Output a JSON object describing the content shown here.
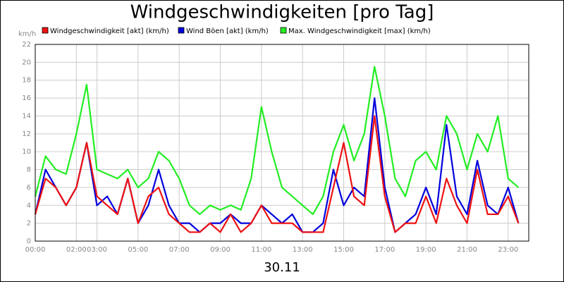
{
  "chart_data": {
    "type": "line",
    "title": "Windgeschwindigkeiten [pro Tag]",
    "y_unit": "km/h",
    "x_caption": "30.11",
    "x": [
      0,
      0.5,
      1,
      1.5,
      2,
      2.5,
      3,
      3.5,
      4,
      4.5,
      5,
      5.5,
      6,
      6.5,
      7,
      7.5,
      8,
      8.5,
      9,
      9.5,
      10,
      10.5,
      11,
      11.5,
      12,
      12.5,
      13,
      13.5,
      14,
      14.5,
      15,
      15.5,
      16,
      16.5,
      17,
      17.5,
      18,
      18.5,
      19,
      19.5,
      20,
      20.5,
      21,
      21.5,
      22,
      22.5,
      23,
      23.5
    ],
    "series": [
      {
        "name": "Windgeschwindigkeit [akt] (km/h)",
        "color": "#ee1111",
        "values": [
          3,
          7,
          6,
          4,
          6,
          11,
          5,
          4,
          3,
          7,
          2,
          5,
          6,
          3,
          2,
          1,
          1,
          2,
          1,
          3,
          1,
          2,
          4,
          2,
          2,
          2,
          1,
          1,
          1,
          6,
          11,
          5,
          4,
          14,
          5,
          1,
          2,
          2,
          5,
          2,
          7,
          4,
          2,
          8,
          3,
          3,
          5,
          2
        ]
      },
      {
        "name": "Wind Böen [akt] (km/h)",
        "color": "#0000dd",
        "values": [
          3,
          8,
          6,
          4,
          6,
          11,
          4,
          5,
          3,
          7,
          2,
          4,
          8,
          4,
          2,
          2,
          1,
          2,
          2,
          3,
          2,
          2,
          4,
          3,
          2,
          3,
          1,
          1,
          2,
          8,
          4,
          6,
          5,
          16,
          6,
          1,
          2,
          3,
          6,
          3,
          13,
          5,
          3,
          9,
          4,
          3,
          6,
          2
        ]
      },
      {
        "name": "Max. Windgeschwindigkeit [max] (km/h)",
        "color": "#22ee22",
        "values": [
          5,
          9.5,
          8,
          7.5,
          12,
          17.5,
          8,
          7.5,
          7,
          8,
          6,
          7,
          10,
          9,
          7,
          4,
          3,
          4,
          3.5,
          4,
          3.5,
          7,
          15,
          10,
          6,
          5,
          4,
          3,
          5,
          10,
          13,
          9,
          12,
          19.5,
          14,
          7,
          5,
          9,
          10,
          8,
          14,
          12,
          8,
          12,
          10,
          14,
          7,
          6
        ]
      }
    ],
    "xlim": [
      0,
      24
    ],
    "xticks": [
      {
        "value": 0,
        "label": "00:00"
      },
      {
        "value": 2,
        "label": "02:00"
      },
      {
        "value": 3,
        "label": "03:00"
      },
      {
        "value": 5,
        "label": "05:00"
      },
      {
        "value": 7,
        "label": "07:00"
      },
      {
        "value": 9,
        "label": "09:00"
      },
      {
        "value": 11,
        "label": "11:00"
      },
      {
        "value": 13,
        "label": "13:00"
      },
      {
        "value": 15,
        "label": "15:00"
      },
      {
        "value": 17,
        "label": "17:00"
      },
      {
        "value": 19,
        "label": "19:00"
      },
      {
        "value": 21,
        "label": "21:00"
      },
      {
        "value": 23,
        "label": "23:00"
      }
    ],
    "ylim": [
      0,
      22
    ],
    "yticks": [
      0,
      2,
      4,
      6,
      8,
      10,
      12,
      14,
      16,
      18,
      20,
      22
    ],
    "grid": true
  }
}
